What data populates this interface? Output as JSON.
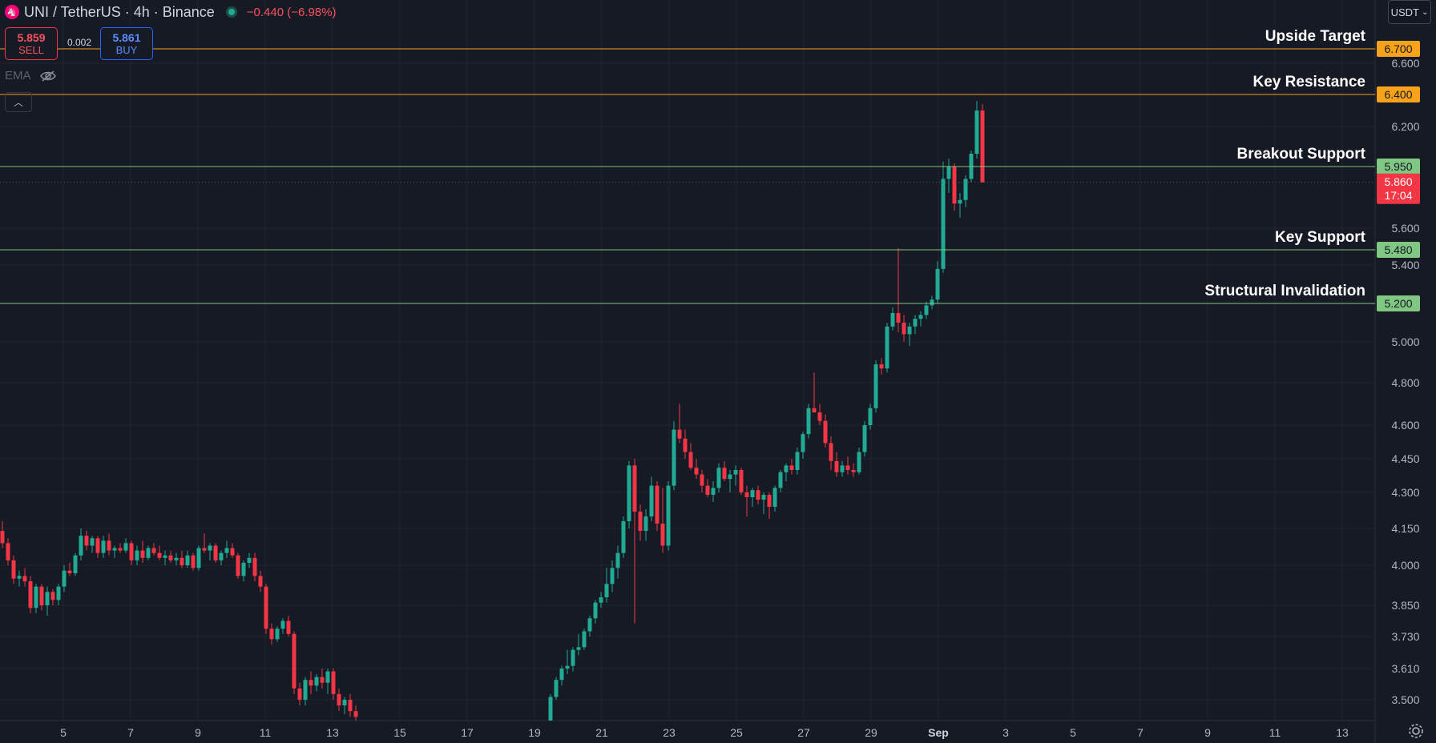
{
  "header": {
    "symbol": "UNI / TetherUS · 4h · Binance",
    "change": "−0.440 (−6.98%)"
  },
  "trade": {
    "sell_price": "5.859",
    "sell_label": "SELL",
    "spread": "0.002",
    "buy_price": "5.861",
    "buy_label": "BUY"
  },
  "indicator": {
    "label": "EMA"
  },
  "currency": {
    "label": "USDT"
  },
  "colors": {
    "background": "#161a25",
    "up": "#22ab94",
    "down": "#f23645",
    "resistance": "#f7a21b",
    "support": "#81c784",
    "grid": "#1f2430"
  },
  "chart_data": {
    "type": "candlestick",
    "x_axis": {
      "ticks": [
        "5",
        "7",
        "9",
        "11",
        "13",
        "15",
        "17",
        "19",
        "21",
        "23",
        "25",
        "27",
        "29",
        "Sep",
        "3",
        "5",
        "7",
        "9",
        "11",
        "13"
      ]
    },
    "y_axis": {
      "ticks": [
        "6.600",
        "6.200",
        "5.600",
        "5.400",
        "5.000",
        "4.800",
        "4.600",
        "4.450",
        "4.300",
        "4.150",
        "4.000",
        "3.850",
        "3.730",
        "3.610",
        "3.500"
      ]
    },
    "last_price": {
      "value": "5.860",
      "countdown": "17:04"
    },
    "levels": [
      {
        "name": "Upside Target",
        "value": "6.700",
        "kind": "resistance"
      },
      {
        "name": "Key Resistance",
        "value": "6.400",
        "kind": "resistance"
      },
      {
        "name": "Breakout Support",
        "value": "5.950",
        "kind": "support"
      },
      {
        "name": "Key Support",
        "value": "5.480",
        "kind": "support"
      },
      {
        "name": "Structural Invalidation",
        "value": "5.200",
        "kind": "support"
      }
    ],
    "candles_ohlc": [
      [
        4.14,
        4.18,
        4.07,
        4.09
      ],
      [
        4.09,
        4.11,
        4.0,
        4.02
      ],
      [
        4.02,
        4.04,
        3.93,
        3.95
      ],
      [
        3.95,
        3.98,
        3.92,
        3.96
      ],
      [
        3.96,
        3.99,
        3.92,
        3.94
      ],
      [
        3.94,
        3.96,
        3.82,
        3.84
      ],
      [
        3.84,
        3.93,
        3.82,
        3.92
      ],
      [
        3.92,
        3.93,
        3.83,
        3.85
      ],
      [
        3.85,
        3.92,
        3.81,
        3.9
      ],
      [
        3.9,
        3.91,
        3.85,
        3.87
      ],
      [
        3.87,
        3.93,
        3.85,
        3.92
      ],
      [
        3.92,
        4.0,
        3.9,
        3.98
      ],
      [
        3.98,
        4.01,
        3.96,
        3.97
      ],
      [
        3.97,
        4.05,
        3.96,
        4.04
      ],
      [
        4.04,
        4.15,
        4.02,
        4.12
      ],
      [
        4.12,
        4.14,
        4.06,
        4.08
      ],
      [
        4.08,
        4.12,
        4.05,
        4.11
      ],
      [
        4.11,
        4.12,
        4.03,
        4.05
      ],
      [
        4.05,
        4.12,
        4.03,
        4.1
      ],
      [
        4.1,
        4.13,
        4.04,
        4.06
      ],
      [
        4.06,
        4.08,
        4.03,
        4.07
      ],
      [
        4.07,
        4.09,
        4.05,
        4.06
      ],
      [
        4.06,
        4.11,
        4.05,
        4.09
      ],
      [
        4.09,
        4.1,
        4.0,
        4.02
      ],
      [
        4.02,
        4.08,
        4.0,
        4.06
      ],
      [
        4.06,
        4.1,
        4.01,
        4.03
      ],
      [
        4.03,
        4.08,
        4.02,
        4.07
      ],
      [
        4.07,
        4.09,
        4.04,
        4.05
      ],
      [
        4.05,
        4.08,
        4.02,
        4.03
      ],
      [
        4.03,
        4.06,
        4.0,
        4.04
      ],
      [
        4.04,
        4.06,
        4.01,
        4.02
      ],
      [
        4.02,
        4.05,
        4.0,
        4.03
      ],
      [
        4.03,
        4.06,
        3.99,
        4.0
      ],
      [
        4.0,
        4.06,
        3.99,
        4.04
      ],
      [
        4.04,
        4.05,
        3.98,
        3.99
      ],
      [
        3.99,
        4.08,
        3.98,
        4.07
      ],
      [
        4.07,
        4.13,
        4.05,
        4.06
      ],
      [
        4.06,
        4.09,
        4.02,
        4.08
      ],
      [
        4.08,
        4.09,
        4.01,
        4.02
      ],
      [
        4.02,
        4.06,
        4.0,
        4.05
      ],
      [
        4.05,
        4.1,
        4.03,
        4.07
      ],
      [
        4.07,
        4.09,
        4.03,
        4.04
      ],
      [
        4.04,
        4.05,
        3.95,
        3.96
      ],
      [
        3.96,
        4.02,
        3.94,
        4.01
      ],
      [
        4.01,
        4.05,
        3.99,
        4.03
      ],
      [
        4.03,
        4.05,
        3.94,
        3.96
      ],
      [
        3.96,
        3.98,
        3.9,
        3.92
      ],
      [
        3.92,
        3.93,
        3.74,
        3.76
      ],
      [
        3.76,
        3.78,
        3.7,
        3.72
      ],
      [
        3.72,
        3.77,
        3.71,
        3.76
      ],
      [
        3.76,
        3.8,
        3.74,
        3.79
      ],
      [
        3.79,
        3.81,
        3.73,
        3.74
      ],
      [
        3.74,
        3.75,
        3.52,
        3.54
      ],
      [
        3.54,
        3.56,
        3.48,
        3.5
      ],
      [
        3.5,
        3.58,
        3.48,
        3.57
      ],
      [
        3.57,
        3.6,
        3.52,
        3.55
      ],
      [
        3.55,
        3.59,
        3.53,
        3.58
      ],
      [
        3.58,
        3.61,
        3.54,
        3.56
      ],
      [
        3.56,
        3.61,
        3.52,
        3.6
      ],
      [
        3.6,
        3.61,
        3.5,
        3.52
      ],
      [
        3.52,
        3.54,
        3.46,
        3.48
      ],
      [
        3.48,
        3.51,
        3.45,
        3.5
      ],
      [
        3.5,
        3.52,
        3.44,
        3.46
      ],
      [
        3.46,
        3.48,
        3.42,
        3.44
      ]
    ],
    "candles_ohlc_2": [
      [
        3.4,
        3.52,
        3.39,
        3.51
      ],
      [
        3.51,
        3.58,
        3.5,
        3.57
      ],
      [
        3.57,
        3.62,
        3.55,
        3.61
      ],
      [
        3.61,
        3.68,
        3.59,
        3.62
      ],
      [
        3.62,
        3.69,
        3.6,
        3.68
      ],
      [
        3.68,
        3.74,
        3.66,
        3.69
      ],
      [
        3.69,
        3.76,
        3.68,
        3.75
      ],
      [
        3.75,
        3.81,
        3.73,
        3.8
      ],
      [
        3.8,
        3.87,
        3.78,
        3.86
      ],
      [
        3.86,
        3.9,
        3.84,
        3.88
      ],
      [
        3.88,
        3.99,
        3.86,
        3.93
      ],
      [
        3.93,
        4.02,
        3.9,
        3.99
      ],
      [
        3.99,
        4.08,
        3.95,
        4.05
      ],
      [
        4.05,
        4.2,
        4.03,
        4.18
      ],
      [
        4.18,
        4.44,
        4.15,
        4.42
      ],
      [
        4.42,
        4.45,
        3.78,
        4.22
      ],
      [
        4.22,
        4.25,
        4.1,
        4.14
      ],
      [
        4.14,
        4.23,
        4.1,
        4.2
      ],
      [
        4.2,
        4.37,
        4.18,
        4.33
      ],
      [
        4.33,
        4.35,
        4.14,
        4.17
      ],
      [
        4.17,
        4.32,
        4.05,
        4.08
      ],
      [
        4.08,
        4.35,
        4.06,
        4.33
      ],
      [
        4.33,
        4.62,
        4.31,
        4.58
      ],
      [
        4.58,
        4.7,
        4.52,
        4.54
      ],
      [
        4.54,
        4.58,
        4.45,
        4.48
      ],
      [
        4.48,
        4.52,
        4.4,
        4.41
      ],
      [
        4.41,
        4.45,
        4.36,
        4.38
      ],
      [
        4.38,
        4.4,
        4.3,
        4.33
      ],
      [
        4.33,
        4.36,
        4.28,
        4.29
      ],
      [
        4.29,
        4.35,
        4.26,
        4.32
      ],
      [
        4.32,
        4.43,
        4.3,
        4.41
      ],
      [
        4.41,
        4.44,
        4.35,
        4.36
      ],
      [
        4.36,
        4.4,
        4.3,
        4.38
      ],
      [
        4.38,
        4.42,
        4.33,
        4.4
      ],
      [
        4.4,
        4.41,
        4.29,
        4.3
      ],
      [
        4.3,
        4.33,
        4.2,
        4.28
      ],
      [
        4.28,
        4.32,
        4.24,
        4.31
      ],
      [
        4.31,
        4.33,
        4.25,
        4.27
      ],
      [
        4.27,
        4.3,
        4.21,
        4.29
      ],
      [
        4.29,
        4.3,
        4.19,
        4.24
      ],
      [
        4.24,
        4.33,
        4.22,
        4.32
      ],
      [
        4.32,
        4.4,
        4.3,
        4.39
      ],
      [
        4.39,
        4.43,
        4.35,
        4.42
      ],
      [
        4.42,
        4.45,
        4.38,
        4.4
      ],
      [
        4.4,
        4.5,
        4.38,
        4.48
      ],
      [
        4.48,
        4.57,
        4.45,
        4.56
      ],
      [
        4.56,
        4.7,
        4.54,
        4.68
      ],
      [
        4.68,
        4.85,
        4.66,
        4.66
      ],
      [
        4.66,
        4.7,
        4.6,
        4.62
      ],
      [
        4.62,
        4.65,
        4.5,
        4.52
      ],
      [
        4.52,
        4.55,
        4.4,
        4.44
      ],
      [
        4.44,
        4.48,
        4.37,
        4.39
      ],
      [
        4.39,
        4.44,
        4.37,
        4.42
      ],
      [
        4.42,
        4.46,
        4.38,
        4.4
      ],
      [
        4.4,
        4.43,
        4.37,
        4.39
      ],
      [
        4.39,
        4.5,
        4.38,
        4.48
      ],
      [
        4.48,
        4.62,
        4.46,
        4.6
      ],
      [
        4.6,
        4.7,
        4.58,
        4.68
      ],
      [
        4.68,
        4.91,
        4.66,
        4.89
      ],
      [
        4.89,
        4.92,
        4.84,
        4.87
      ],
      [
        4.87,
        5.1,
        4.85,
        5.08
      ],
      [
        5.08,
        5.18,
        5.06,
        5.15
      ],
      [
        5.15,
        5.49,
        5.05,
        5.1
      ],
      [
        5.1,
        5.14,
        5.0,
        5.04
      ],
      [
        5.04,
        5.1,
        4.98,
        5.08
      ],
      [
        5.08,
        5.14,
        5.04,
        5.12
      ],
      [
        5.12,
        5.16,
        5.08,
        5.14
      ],
      [
        5.14,
        5.21,
        5.12,
        5.19
      ],
      [
        5.19,
        5.24,
        5.17,
        5.22
      ],
      [
        5.22,
        5.42,
        5.2,
        5.38
      ],
      [
        5.38,
        5.98,
        5.36,
        5.88
      ],
      [
        5.88,
        6.0,
        5.8,
        5.95
      ],
      [
        5.95,
        5.97,
        5.7,
        5.74
      ],
      [
        5.74,
        5.8,
        5.66,
        5.76
      ],
      [
        5.76,
        5.9,
        5.72,
        5.88
      ],
      [
        5.88,
        6.05,
        5.86,
        6.03
      ],
      [
        6.03,
        6.36,
        6.0,
        6.3
      ],
      [
        6.3,
        6.34,
        5.86,
        5.86
      ]
    ]
  }
}
